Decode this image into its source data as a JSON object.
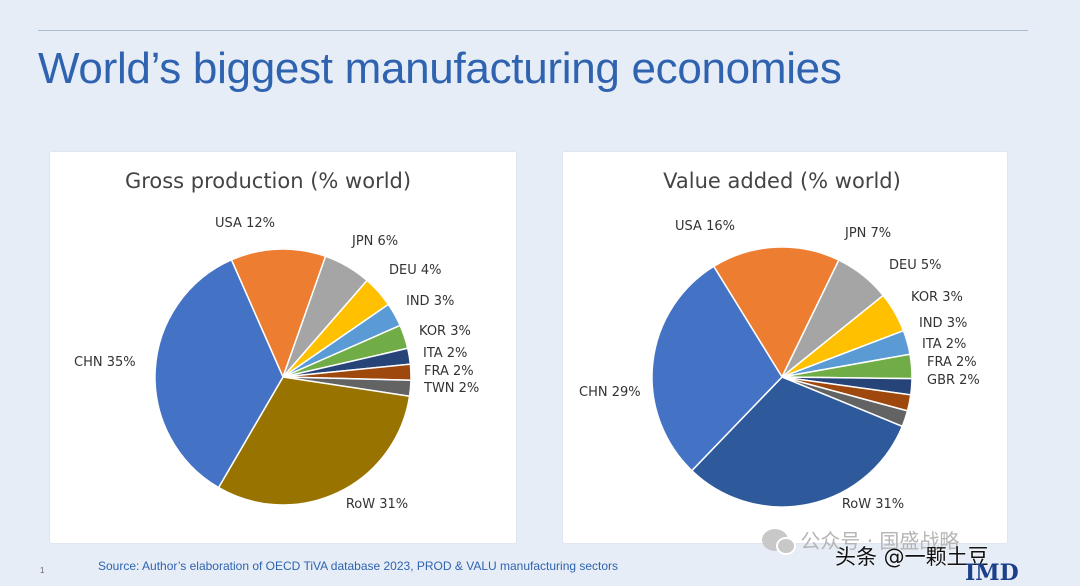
{
  "slide": {
    "title": "World’s biggest manufacturing economies",
    "source": "Source: Author’s elaboration of OECD   TiVA database 2023, PROD & VALU manufacturing sectors",
    "page_number": "1",
    "watermark": "公众号 · 国盛战略",
    "toutiao": "头条 @一颗土豆",
    "logo": "IMD"
  },
  "chart_data": [
    {
      "type": "pie",
      "title": "Gross production  (% world)",
      "labels": [
        "USA 12%",
        "JPN 6%",
        "DEU 4%",
        "IND 3%",
        "KOR 3%",
        "ITA 2%",
        "FRA 2%",
        "TWN 2%",
        "RoW 31%",
        "CHN 35%"
      ],
      "categories": [
        "USA",
        "JPN",
        "DEU",
        "IND",
        "KOR",
        "ITA",
        "FRA",
        "TWN",
        "RoW",
        "CHN"
      ],
      "values": [
        12,
        6,
        4,
        3,
        3,
        2,
        2,
        2,
        31,
        35
      ],
      "unit": "% world",
      "colors": [
        "#ed7d31",
        "#a5a5a5",
        "#ffc000",
        "#5b9bd5",
        "#70ad47",
        "#264478",
        "#9e480e",
        "#636363",
        "#997300",
        "#4472c4"
      ]
    },
    {
      "type": "pie",
      "title": "Value added (% world)",
      "labels": [
        "USA 16%",
        "JPN 7%",
        "DEU 5%",
        "KOR 3%",
        "IND 3%",
        "ITA 2%",
        "FRA 2%",
        "GBR 2%",
        "RoW 31%",
        "CHN 29%"
      ],
      "categories": [
        "USA",
        "JPN",
        "DEU",
        "KOR",
        "IND",
        "ITA",
        "FRA",
        "GBR",
        "RoW",
        "CHN"
      ],
      "values": [
        16,
        7,
        5,
        3,
        3,
        2,
        2,
        2,
        31,
        29
      ],
      "unit": "% world",
      "colors": [
        "#ed7d31",
        "#a5a5a5",
        "#ffc000",
        "#5b9bd5",
        "#70ad47",
        "#264478",
        "#9e480e",
        "#636363",
        "#2e5a9c",
        "#4472c4"
      ]
    }
  ]
}
